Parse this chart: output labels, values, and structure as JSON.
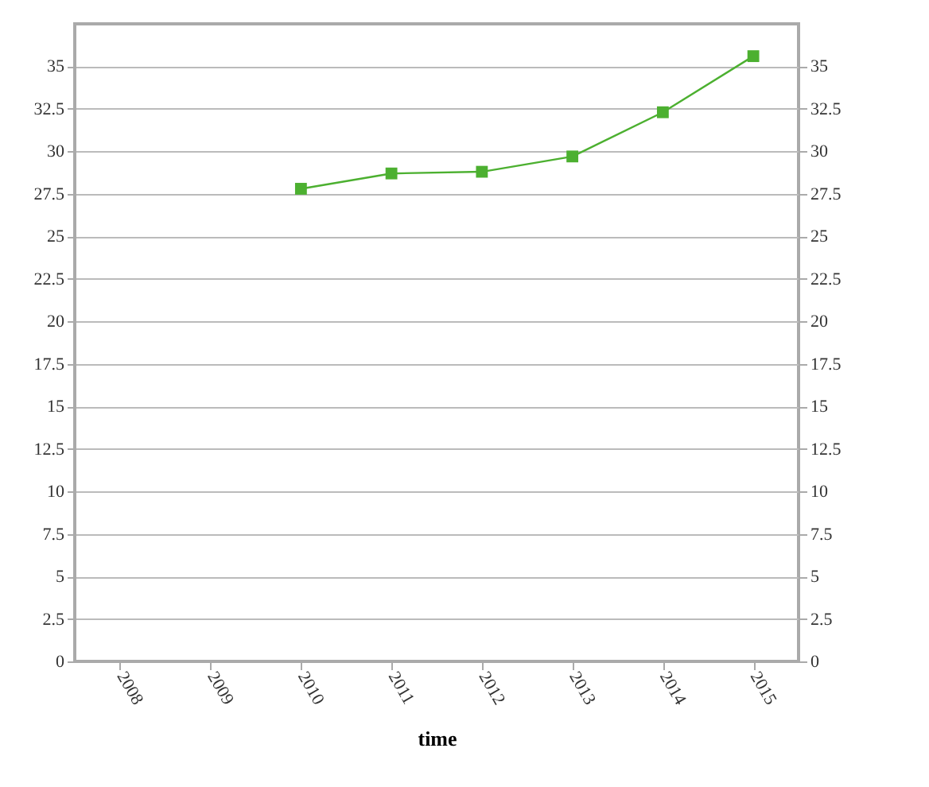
{
  "chart_data": {
    "type": "line",
    "xlabel": "time",
    "categories": [
      "2008",
      "2009",
      "2010",
      "2011",
      "2012",
      "2013",
      "2014",
      "2015"
    ],
    "series": [
      {
        "color": "#4cb030",
        "values": [
          null,
          null,
          27.8,
          28.7,
          28.8,
          29.7,
          32.3,
          35.6
        ]
      }
    ],
    "ylim": [
      0,
      37.5
    ],
    "yticks": [
      0,
      2.5,
      5,
      7.5,
      10,
      12.5,
      15,
      17.5,
      20,
      22.5,
      25,
      27.5,
      30,
      32.5,
      35
    ],
    "y2lim": [
      0,
      37.5
    ],
    "y2ticks": [
      0,
      2.5,
      5,
      7.5,
      10,
      12.5,
      15,
      17.5,
      20,
      22.5,
      25,
      27.5,
      30,
      32.5,
      35
    ],
    "grid": "y",
    "legend": false,
    "marker": "square",
    "line_style": "solid"
  }
}
